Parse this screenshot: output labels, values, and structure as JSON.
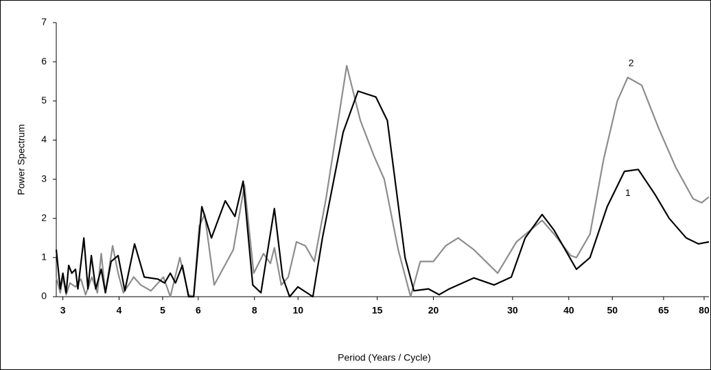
{
  "chart_data": {
    "type": "line",
    "x_label": "Period (Years / Cycle)",
    "y_label": "Power Spectrum",
    "xscale": "log",
    "xlim": [
      2.9,
      82
    ],
    "ylim": [
      0,
      7
    ],
    "xticks": [
      3,
      4,
      5,
      6,
      8,
      10,
      15,
      20,
      30,
      40,
      50,
      65,
      80
    ],
    "yticks": [
      0,
      1,
      2,
      3,
      4,
      5,
      6,
      7
    ],
    "series": [
      {
        "name": "1",
        "color": "#000000",
        "x": [
          2.9,
          2.96,
          3.0,
          3.05,
          3.09,
          3.14,
          3.2,
          3.24,
          3.34,
          3.41,
          3.47,
          3.55,
          3.65,
          3.73,
          3.84,
          3.98,
          4.12,
          4.33,
          4.55,
          4.88,
          5.05,
          5.2,
          5.34,
          5.53,
          5.71,
          5.86,
          6.11,
          6.42,
          6.89,
          7.24,
          7.55,
          7.93,
          8.27,
          8.86,
          9.24,
          9.58,
          9.99,
          10.79,
          11.33,
          12.6,
          13.6,
          14.9,
          15.8,
          17.3,
          18.1,
          19.5,
          20.6,
          21.7,
          24.6,
          27.3,
          29.8,
          32.0,
          34.9,
          37.1,
          41.6,
          44.6,
          48.7,
          53.2,
          57.1,
          62.3,
          66.9,
          73.0,
          77.7,
          82
        ],
        "values": [
          1.2,
          0.2,
          0.6,
          0.1,
          0.8,
          0.6,
          0.7,
          0.2,
          1.5,
          0.2,
          1.05,
          0.2,
          0.7,
          0.1,
          0.9,
          1.05,
          0.15,
          1.35,
          0.5,
          0.45,
          0.35,
          0.6,
          0.35,
          0.8,
          0.0,
          0.0,
          2.3,
          1.5,
          2.45,
          2.05,
          2.95,
          0.3,
          0.1,
          2.25,
          0.5,
          0.0,
          0.25,
          0.0,
          1.5,
          4.2,
          5.25,
          5.1,
          4.5,
          1.0,
          0.15,
          0.2,
          0.05,
          0.2,
          0.48,
          0.3,
          0.5,
          1.5,
          2.1,
          1.7,
          0.7,
          1.0,
          2.3,
          3.2,
          3.25,
          2.6,
          2.0,
          1.5,
          1.35,
          1.4
        ]
      },
      {
        "name": "2",
        "color": "#8c8c8c",
        "x": [
          2.9,
          2.96,
          3.0,
          3.05,
          3.11,
          3.2,
          3.29,
          3.37,
          3.48,
          3.58,
          3.65,
          3.73,
          3.87,
          3.98,
          4.09,
          4.31,
          4.47,
          4.71,
          5.02,
          5.2,
          5.46,
          5.71,
          5.86,
          6.03,
          6.2,
          6.51,
          7.18,
          7.6,
          7.97,
          8.38,
          8.68,
          8.86,
          9.18,
          9.51,
          9.92,
          10.38,
          10.87,
          11.54,
          12.83,
          13.76,
          14.75,
          15.55,
          16.7,
          17.8,
          18.7,
          20.0,
          21.3,
          22.7,
          24.6,
          27.8,
          30.6,
          34.9,
          37.1,
          40.4,
          41.6,
          44.6,
          47.8,
          51.3,
          54.1,
          58.1,
          63.4,
          69.2,
          75.6,
          79.0,
          82
        ],
        "values": [
          0.5,
          0.1,
          0.5,
          0.05,
          0.35,
          0.25,
          0.45,
          0.05,
          0.5,
          0.1,
          1.1,
          0.1,
          1.3,
          0.6,
          0.1,
          0.5,
          0.3,
          0.15,
          0.5,
          0.0,
          1.0,
          0.05,
          0.0,
          1.8,
          2.1,
          0.3,
          1.2,
          2.85,
          0.6,
          1.1,
          0.85,
          1.25,
          0.3,
          0.5,
          1.4,
          1.3,
          0.9,
          2.5,
          5.9,
          4.5,
          3.6,
          3.0,
          1.2,
          0.0,
          0.9,
          0.9,
          1.3,
          1.5,
          1.2,
          0.6,
          1.4,
          1.95,
          1.6,
          1.05,
          1.0,
          1.6,
          3.5,
          5.0,
          5.6,
          5.4,
          4.3,
          3.3,
          2.5,
          2.4,
          2.55
        ]
      }
    ]
  }
}
